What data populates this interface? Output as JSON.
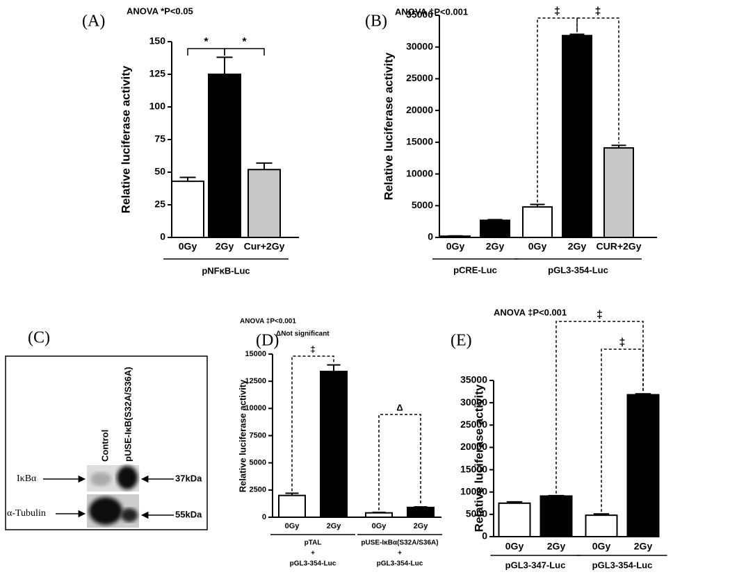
{
  "chart_data": [
    {
      "type": "bar",
      "panel": "(A)",
      "annotations": [
        "ANOVA *P<0.05"
      ],
      "y_label": "Relative luciferase activity",
      "ylim": [
        0,
        150
      ],
      "yticks": [
        0,
        25,
        50,
        75,
        100,
        125,
        150
      ],
      "groups": [
        {
          "label": [
            "pNFκB-Luc"
          ],
          "categories": [
            "0Gy",
            "2Gy",
            "Cur+2Gy"
          ],
          "values": [
            43,
            125,
            52
          ],
          "errors": [
            3,
            13,
            5
          ],
          "colors": [
            "#ffffff",
            "#000000",
            "#c8c8c8"
          ]
        }
      ],
      "brackets": [
        "*",
        "*"
      ]
    },
    {
      "type": "bar",
      "panel": "(B)",
      "annotations": [
        "ANOVA ‡P<0.001"
      ],
      "y_label": "Relative luciferase activity",
      "ylim": [
        0,
        35000
      ],
      "yticks": [
        0,
        5000,
        10000,
        15000,
        20000,
        25000,
        30000,
        35000
      ],
      "groups": [
        {
          "label": [
            "pCRE-Luc"
          ],
          "categories": [
            "0Gy",
            "2Gy"
          ],
          "values": [
            200,
            2700
          ],
          "errors": [
            50,
            100
          ],
          "colors": [
            "#ffffff",
            "#000000"
          ]
        },
        {
          "label": [
            "pGL3-354-Luc"
          ],
          "categories": [
            "0Gy",
            "2Gy",
            "CUR+2Gy"
          ],
          "values": [
            4800,
            31800,
            14100
          ],
          "errors": [
            400,
            200,
            400
          ],
          "colors": [
            "#ffffff",
            "#000000",
            "#c8c8c8"
          ]
        }
      ],
      "brackets": [
        "‡",
        "‡"
      ]
    },
    {
      "type": "bar",
      "panel": "(D)",
      "annotations": [
        "ANOVA ‡P<0.001",
        "ΔNot significant"
      ],
      "y_label": "Relative luciferase activity",
      "ylim": [
        0,
        15000
      ],
      "yticks": [
        0,
        2500,
        5000,
        7500,
        10000,
        12500,
        15000
      ],
      "groups": [
        {
          "label": [
            "pTAL",
            "+",
            "pGL3-354-Luc"
          ],
          "categories": [
            "0Gy",
            "2Gy"
          ],
          "values": [
            2000,
            13400
          ],
          "errors": [
            200,
            600
          ],
          "colors": [
            "#ffffff",
            "#000000"
          ]
        },
        {
          "label": [
            "pUSE-IκBα(S32A/S36A)",
            "+",
            "pGL3-354-Luc"
          ],
          "categories": [
            "0Gy",
            "2Gy"
          ],
          "values": [
            400,
            900
          ],
          "errors": [
            50,
            50
          ],
          "colors": [
            "#ffffff",
            "#000000"
          ]
        }
      ],
      "brackets": [
        "‡",
        "Δ"
      ]
    },
    {
      "type": "bar",
      "panel": "(E)",
      "annotations": [
        "ANOVA ‡P<0.001"
      ],
      "y_label": "Relative luciferase activity",
      "ylim": [
        0,
        35000
      ],
      "yticks": [
        0,
        5000,
        10000,
        15000,
        20000,
        25000,
        30000,
        35000
      ],
      "groups": [
        {
          "label": [
            "pGL3-347-Luc"
          ],
          "categories": [
            "0Gy",
            "2Gy"
          ],
          "values": [
            7500,
            9100
          ],
          "errors": [
            300,
            100
          ],
          "colors": [
            "#ffffff",
            "#000000"
          ]
        },
        {
          "label": [
            "pGL3-354-Luc"
          ],
          "categories": [
            "0Gy",
            "2Gy"
          ],
          "values": [
            4800,
            31800
          ],
          "errors": [
            300,
            200
          ],
          "colors": [
            "#ffffff",
            "#000000"
          ]
        }
      ],
      "brackets": [
        "‡",
        "‡"
      ]
    }
  ],
  "blot": {
    "panel": "(C)",
    "lanes": [
      "Control",
      "pUSE-IκB(S32A/S36A)"
    ],
    "rows": [
      "IκBα",
      "α-Tubulin"
    ],
    "sizes": [
      "37kDa",
      "55kDa"
    ]
  }
}
